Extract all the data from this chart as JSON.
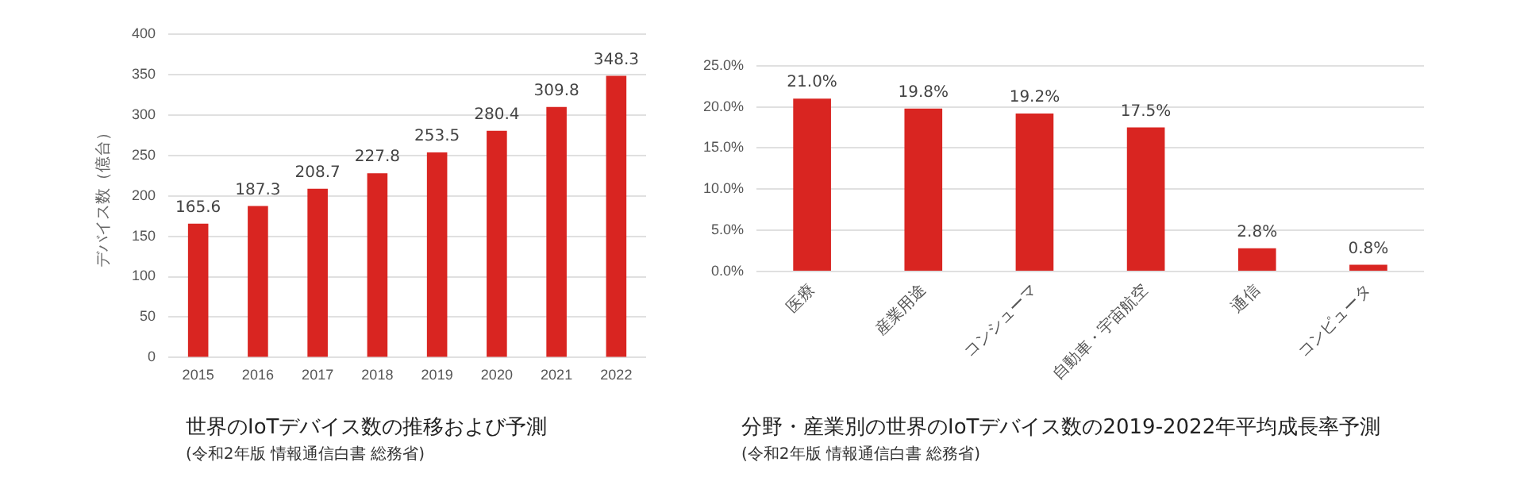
{
  "chart_data": [
    {
      "type": "bar",
      "title": "世界のIoTデバイス数の推移および予測",
      "ylabel": "デバイス数（億台）",
      "annotations": [
        "(令和2年版 情報通信白書 総務省)"
      ],
      "categories": [
        "2015",
        "2016",
        "2017",
        "2018",
        "2019",
        "2020",
        "2021",
        "2022"
      ],
      "values": [
        165.6,
        187.3,
        208.7,
        227.8,
        253.5,
        280.4,
        309.8,
        348.3
      ],
      "color": "#d92521",
      "ylim": [
        0,
        400
      ],
      "yticks": [
        0,
        50,
        100,
        150,
        200,
        250,
        300,
        350,
        400
      ],
      "grid": "y",
      "data_labels": true
    },
    {
      "type": "bar",
      "title": "分野・産業別の世界のIoTデバイス数の2019-2022年平均成長率予測",
      "annotations": [
        "(令和2年版 情報通信白書 総務省)"
      ],
      "categories": [
        "医療",
        "産業用途",
        "コンシューマ",
        "自動車・宇宙航空",
        "通信",
        "コンピュータ"
      ],
      "values": [
        21.0,
        19.8,
        19.2,
        17.5,
        2.8,
        0.8
      ],
      "color": "#d92521",
      "value_labels": [
        "21.0%",
        "19.8%",
        "19.2%",
        "17.5%",
        "2.8%",
        "0.8%"
      ],
      "ylim": [
        0,
        25
      ],
      "yticks": [
        {
          "value": 0,
          "label": "0.0%"
        },
        {
          "value": 5,
          "label": "5.0%"
        },
        {
          "value": 10,
          "label": "10.0%"
        },
        {
          "value": 15,
          "label": "15.0%"
        },
        {
          "value": 20,
          "label": "20.0%"
        },
        {
          "value": 25,
          "label": "25.0%"
        }
      ],
      "grid": "y"
    }
  ]
}
